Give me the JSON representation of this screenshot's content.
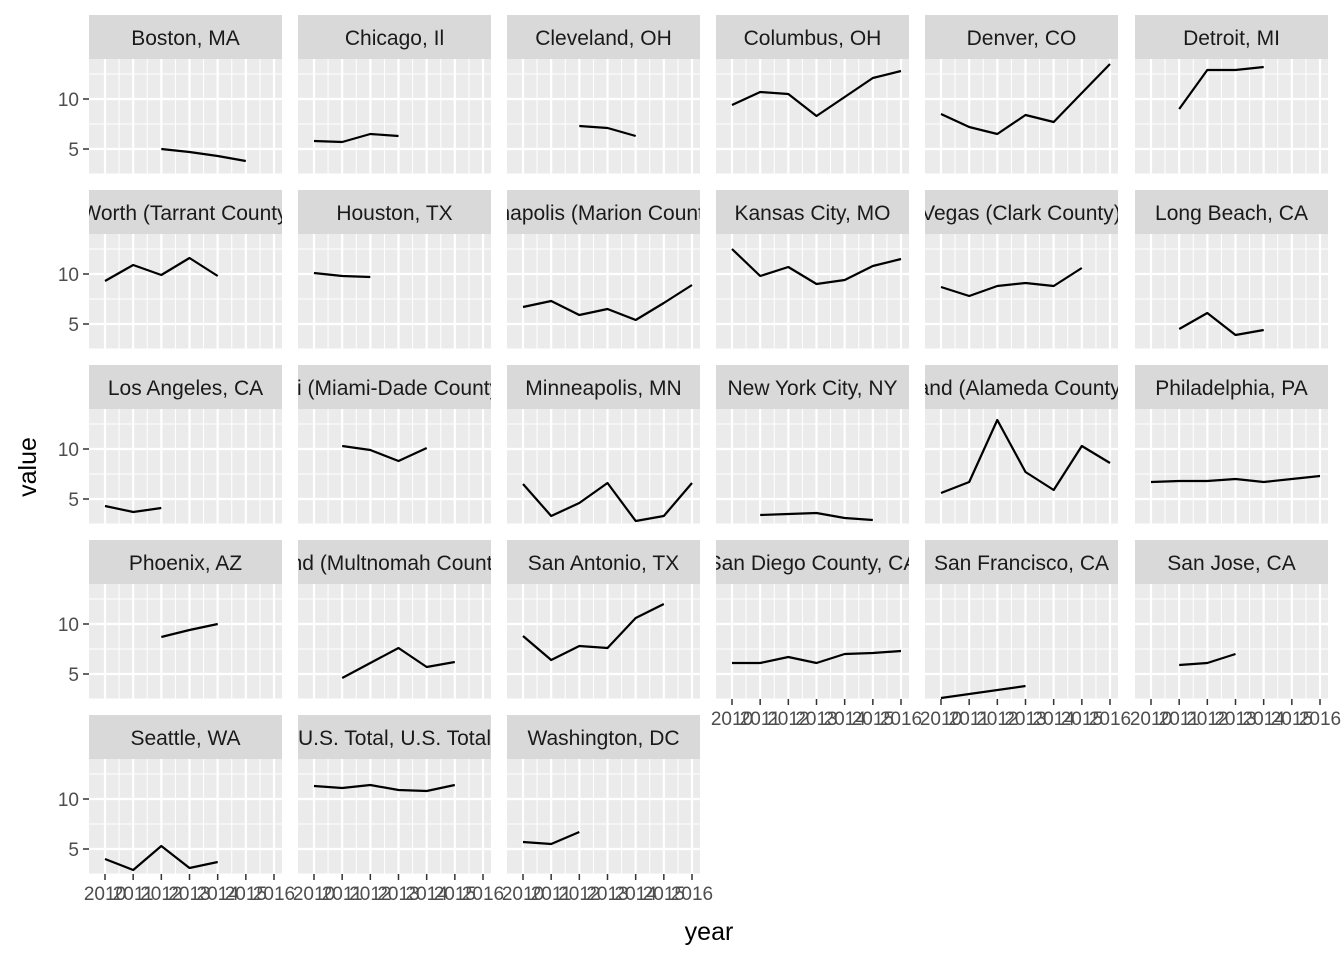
{
  "chart_data": {
    "type": "line",
    "xlabel": "year",
    "ylabel": "value",
    "x": [
      2010,
      2011,
      2012,
      2013,
      2014,
      2015,
      2016
    ],
    "x_tick_labels": [
      "2010",
      "2011",
      "2012",
      "2013",
      "2014",
      "2015",
      "2016"
    ],
    "ylim": [
      2.5,
      14
    ],
    "y_ticks": [
      5,
      10
    ],
    "y_tick_labels": [
      "5",
      "10"
    ],
    "grid": true,
    "colors": {
      "panel": "#ebebeb",
      "strip": "#d9d9d9",
      "grid": "#ffffff",
      "line": "#000000"
    },
    "facets": [
      {
        "name": "Boston, MA",
        "x": [
          2012,
          2013,
          2014,
          2015
        ],
        "values": [
          5.0,
          4.7,
          4.3,
          3.8
        ]
      },
      {
        "name": "Chicago, Il",
        "x": [
          2010,
          2011,
          2012,
          2013
        ],
        "values": [
          5.8,
          5.7,
          6.5,
          6.3
        ]
      },
      {
        "name": "Cleveland, OH",
        "x": [
          2012,
          2013,
          2014
        ],
        "values": [
          7.3,
          7.1,
          6.3
        ]
      },
      {
        "name": "Columbus, OH",
        "x": [
          2010,
          2011,
          2012,
          2013,
          2014,
          2015,
          2016
        ],
        "values": [
          9.4,
          10.7,
          10.5,
          8.3,
          10.2,
          12.1,
          12.8
        ]
      },
      {
        "name": "Denver, CO",
        "x": [
          2010,
          2011,
          2012,
          2013,
          2014,
          2015,
          2016
        ],
        "values": [
          8.5,
          7.2,
          6.5,
          8.4,
          7.7,
          10.6,
          13.5
        ]
      },
      {
        "name": "Detroit, MI",
        "x": [
          2011,
          2012,
          2013,
          2014
        ],
        "values": [
          9.0,
          12.9,
          12.9,
          13.2
        ]
      },
      {
        "name": "Fort Worth (Tarrant County), TX",
        "x": [
          2010,
          2011,
          2012,
          2013,
          2014
        ],
        "values": [
          9.3,
          10.9,
          9.9,
          11.6,
          9.8
        ]
      },
      {
        "name": "Houston, TX",
        "x": [
          2010,
          2011,
          2012
        ],
        "values": [
          10.1,
          9.8,
          9.7
        ]
      },
      {
        "name": "Indianapolis (Marion County), IN",
        "x": [
          2010,
          2011,
          2012,
          2013,
          2014,
          2015,
          2016
        ],
        "values": [
          6.7,
          7.3,
          5.9,
          6.5,
          5.4,
          7.1,
          8.9
        ]
      },
      {
        "name": "Kansas City, MO",
        "x": [
          2010,
          2011,
          2012,
          2013,
          2014,
          2015,
          2016
        ],
        "values": [
          12.5,
          9.8,
          10.7,
          9.0,
          9.4,
          10.8,
          11.5
        ]
      },
      {
        "name": "Las Vegas (Clark County), NV",
        "x": [
          2010,
          2011,
          2012,
          2013,
          2014,
          2015
        ],
        "values": [
          8.7,
          7.8,
          8.8,
          9.1,
          8.8,
          10.6
        ]
      },
      {
        "name": "Long Beach, CA",
        "x": [
          2011,
          2012,
          2013,
          2014
        ],
        "values": [
          4.5,
          6.1,
          3.9,
          4.4
        ]
      },
      {
        "name": "Los Angeles, CA",
        "x": [
          2010,
          2011,
          2012
        ],
        "values": [
          4.3,
          3.7,
          4.1
        ]
      },
      {
        "name": "Miami (Miami-Dade County), FL",
        "x": [
          2011,
          2012,
          2013,
          2014
        ],
        "values": [
          10.3,
          9.9,
          8.8,
          10.1
        ]
      },
      {
        "name": "Minneapolis, MN",
        "x": [
          2010,
          2011,
          2012,
          2013,
          2014,
          2015,
          2016
        ],
        "values": [
          6.5,
          3.3,
          4.6,
          6.6,
          2.8,
          3.3,
          6.6
        ]
      },
      {
        "name": "New York City, NY",
        "x": [
          2011,
          2012,
          2013,
          2014,
          2015
        ],
        "values": [
          3.4,
          3.5,
          3.6,
          3.1,
          2.9
        ]
      },
      {
        "name": "Oakland (Alameda County), CA",
        "x": [
          2010,
          2011,
          2012,
          2013,
          2014,
          2015,
          2016
        ],
        "values": [
          5.6,
          6.7,
          12.9,
          7.7,
          5.9,
          10.3,
          8.6
        ]
      },
      {
        "name": "Philadelphia, PA",
        "x": [
          2010,
          2011,
          2012,
          2013,
          2014,
          2015,
          2016
        ],
        "values": [
          6.7,
          6.8,
          6.8,
          7.0,
          6.7,
          7.0,
          7.3
        ]
      },
      {
        "name": "Phoenix, AZ",
        "x": [
          2012,
          2013,
          2014
        ],
        "values": [
          8.7,
          9.4,
          10.0
        ]
      },
      {
        "name": "Portland (Multnomah County), OR",
        "x": [
          2011,
          2012,
          2013,
          2014,
          2015
        ],
        "values": [
          4.6,
          6.1,
          7.6,
          5.7,
          6.2
        ]
      },
      {
        "name": "San Antonio, TX",
        "x": [
          2010,
          2011,
          2012,
          2013,
          2014,
          2015
        ],
        "values": [
          8.8,
          6.4,
          7.8,
          7.6,
          10.6,
          12.0
        ]
      },
      {
        "name": "San Diego County, CA",
        "x": [
          2010,
          2011,
          2012,
          2013,
          2014,
          2015,
          2016
        ],
        "values": [
          6.1,
          6.1,
          6.7,
          6.1,
          7.0,
          7.1,
          7.3
        ]
      },
      {
        "name": "San Francisco, CA",
        "x": [
          2010,
          2013
        ],
        "values": [
          2.6,
          3.8
        ]
      },
      {
        "name": "San Jose, CA",
        "x": [
          2011,
          2012,
          2013
        ],
        "values": [
          5.9,
          6.1,
          7.0
        ]
      },
      {
        "name": "Seattle, WA",
        "x": [
          2010,
          2011,
          2012,
          2013,
          2014
        ],
        "values": [
          4.0,
          2.9,
          5.3,
          3.1,
          3.7
        ]
      },
      {
        "name": "U.S. Total, U.S. Total",
        "x": [
          2010,
          2011,
          2012,
          2013,
          2014,
          2015
        ],
        "values": [
          11.3,
          11.1,
          11.4,
          10.9,
          10.8,
          11.4
        ]
      },
      {
        "name": "Washington, DC",
        "x": [
          2010,
          2011,
          2012
        ],
        "values": [
          5.7,
          5.5,
          6.7
        ]
      }
    ]
  }
}
